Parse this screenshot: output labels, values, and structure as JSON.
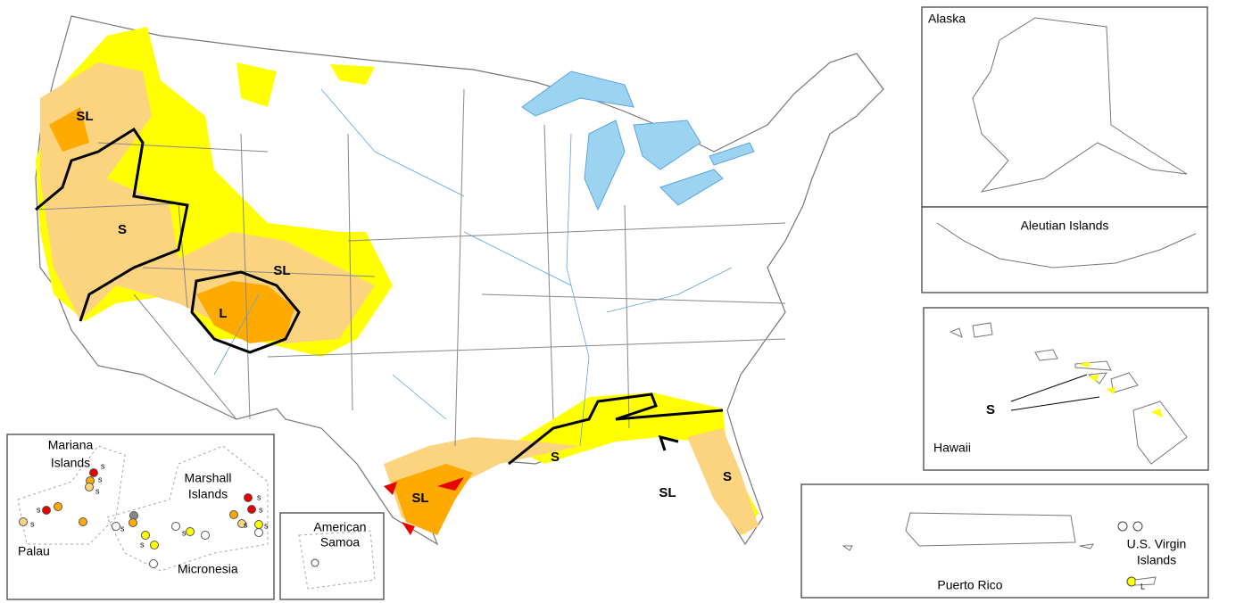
{
  "conus_labels": [
    "SL",
    "S",
    "SL",
    "L",
    "SL",
    "S",
    "SL",
    "S"
  ],
  "insets": {
    "alaska": "Alaska",
    "aleutian": "Aleutian Islands",
    "hawaii": {
      "title": "Hawaii",
      "label": "S"
    },
    "puerto_rico": "Puerto Rico",
    "virgin_islands": {
      "lines": [
        "U.S. Virgin",
        "Islands"
      ],
      "label": "L"
    },
    "american_samoa": [
      "American",
      "Samoa"
    ]
  },
  "pacific": {
    "mariana": [
      "Mariana",
      "Islands"
    ],
    "marshall": [
      "Marshall",
      "Islands"
    ],
    "palau": "Palau",
    "micronesia": "Micronesia",
    "dot_labels": [
      "s",
      "s",
      "s",
      "s",
      "s",
      "s",
      "s",
      "s",
      "s",
      "s",
      "s",
      "s"
    ]
  }
}
